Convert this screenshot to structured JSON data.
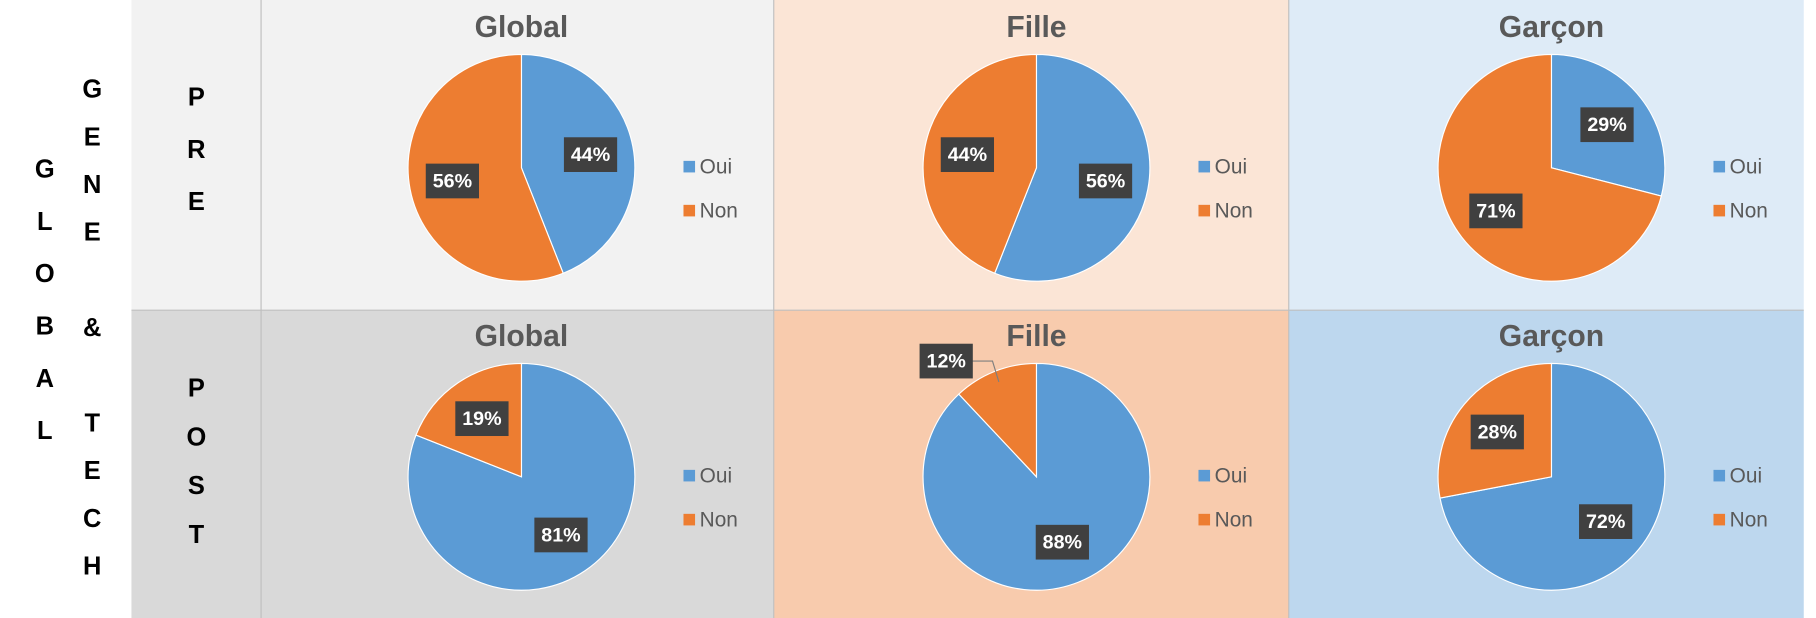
{
  "side_labels": [
    "GLOBAL",
    "GENE & TECH"
  ],
  "rows": [
    "PRE",
    "POST"
  ],
  "chart_data": [
    {
      "type": "pie",
      "title": "Global",
      "categories": [
        "Oui",
        "Non"
      ],
      "values": [
        44,
        56
      ],
      "value_labels": [
        "44%",
        "56%"
      ],
      "colors": [
        "#5b9bd5",
        "#ed7d31"
      ]
    },
    {
      "type": "pie",
      "title": "Fille",
      "categories": [
        "Oui",
        "Non"
      ],
      "values": [
        56,
        44
      ],
      "value_labels": [
        "56%",
        "44%"
      ],
      "colors": [
        "#5b9bd5",
        "#ed7d31"
      ]
    },
    {
      "type": "pie",
      "title": "Garçon",
      "categories": [
        "Oui",
        "Non"
      ],
      "values": [
        29,
        71
      ],
      "value_labels": [
        "29%",
        "71%"
      ],
      "colors": [
        "#5b9bd5",
        "#ed7d31"
      ]
    },
    {
      "type": "pie",
      "title": "Global",
      "categories": [
        "Oui",
        "Non"
      ],
      "values": [
        81,
        19
      ],
      "value_labels": [
        "81%",
        "19%"
      ],
      "colors": [
        "#5b9bd5",
        "#ed7d31"
      ]
    },
    {
      "type": "pie",
      "title": "Fille",
      "categories": [
        "Oui",
        "Non"
      ],
      "values": [
        88,
        12
      ],
      "value_labels": [
        "88%",
        "12%"
      ],
      "colors": [
        "#5b9bd5",
        "#ed7d31"
      ]
    },
    {
      "type": "pie",
      "title": "Garçon",
      "categories": [
        "Oui",
        "Non"
      ],
      "values": [
        72,
        28
      ],
      "value_labels": [
        "72%",
        "28%"
      ],
      "colors": [
        "#5b9bd5",
        "#ed7d31"
      ]
    }
  ]
}
